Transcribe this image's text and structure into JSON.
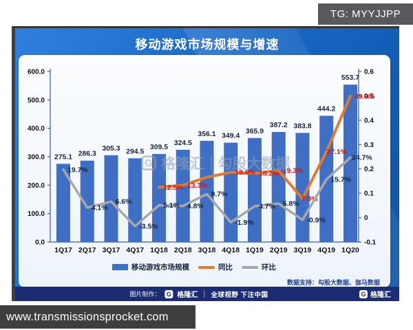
{
  "badge": {
    "text": "TG: MYYJJPP"
  },
  "card": {
    "title": "移动游戏市场规模与增速"
  },
  "watermark": {
    "g": "G",
    "brand": "格隆汇",
    "separator": "|",
    "source": "勾股大数据"
  },
  "panel": {
    "source_note": "数据支持：勾股大数据、伽马数据"
  },
  "footer": {
    "made_by_label": "图片制作：",
    "g": "G",
    "brand": "格隆汇",
    "slogan": "全球视野 下注中国"
  },
  "url_bar": {
    "text": "www.transmissionsprocket.com"
  },
  "chart_data": {
    "type": "bar",
    "subtype": "combo-bar-line",
    "title": "移动游戏市场规模与增速",
    "categories": [
      "1Q17",
      "2Q17",
      "3Q17",
      "4Q17",
      "1Q18",
      "2Q18",
      "3Q18",
      "4Q18",
      "1Q19",
      "2Q19",
      "3Q19",
      "4Q19",
      "1Q20"
    ],
    "bar_series": {
      "name": "移动游戏市场规模",
      "color": "#3e6fc4",
      "axis": "left",
      "values": [
        275.1,
        286.3,
        305.3,
        294.5,
        309.5,
        324.5,
        356.1,
        349.4,
        365.9,
        387.2,
        383.8,
        444.2,
        553.7
      ]
    },
    "line_series": [
      {
        "name": "同比",
        "color": "#e07c2e",
        "label_color": "#e01010",
        "axis": "right",
        "values": [
          null,
          null,
          null,
          null,
          12.5,
          13.3,
          16.6,
          18.6,
          18.2,
          19.3,
          7.8,
          27.1,
          49.9
        ],
        "labels": [
          null,
          null,
          null,
          null,
          "12.5%",
          "13.3%",
          null,
          "18.6%",
          "18.2%",
          "19.3%",
          "7.8%",
          "27.1%",
          "49.9%"
        ],
        "label_dx_overrides": {
          "10": -2,
          "11": 0
        }
      },
      {
        "name": "环比",
        "color": "#a8a8a8",
        "label_color": "#15233f",
        "axis": "right",
        "values": [
          19.7,
          4.1,
          6.6,
          -3.5,
          5.1,
          4.8,
          9.7,
          -1.9,
          4.7,
          5.8,
          -0.9,
          15.7,
          24.7
        ],
        "labels": [
          "19.7%",
          "4.1%",
          "6.6%",
          "-3.5%",
          "5.1%",
          "4.8%",
          "9.7%",
          "-1.9%",
          "4.7%",
          "5.8%",
          "-0.9%",
          "15.7%",
          "24.7%"
        ],
        "label_dx_overrides": {
          "12": 2
        }
      }
    ],
    "left_axis": {
      "min": 0,
      "max": 600,
      "tick_labels": [
        "0.0",
        "100.0",
        "200.0",
        "300.0",
        "400.0",
        "500.0",
        "600.0"
      ]
    },
    "right_axis": {
      "min": -0.1,
      "max": 0.6,
      "tick_labels": [
        "-0.1",
        "0",
        "0.1",
        "0.2",
        "0.3",
        "0.4",
        "0.5",
        "0.6"
      ]
    },
    "grid": false,
    "legend_position": "bottom"
  }
}
